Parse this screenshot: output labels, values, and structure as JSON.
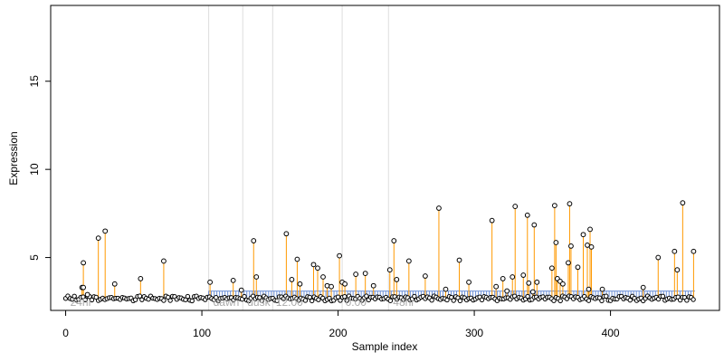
{
  "chart_data": {
    "type": "scatter",
    "title": "",
    "xlabel": "Sample index",
    "ylabel": "Expression",
    "xlim": [
      -11,
      480
    ],
    "ylim": [
      2.0,
      19.3
    ],
    "xticks": [
      0,
      100,
      200,
      300,
      400
    ],
    "yticks": [
      5,
      10,
      15
    ],
    "grid": false,
    "legend": "none",
    "baseline": 2.75,
    "colors": {
      "points": "#000000",
      "stems": "#ff9900",
      "baseline_marks": "#6c8fd6",
      "dividers": "#dddddd",
      "annotations": "#aaaaaa"
    },
    "vertical_lines": [
      105,
      130,
      152,
      203,
      237
    ],
    "blue_band": [
      105,
      462
    ],
    "annotations": [
      {
        "label": "24hr",
        "x": 2
      },
      {
        "label": "dawn",
        "x": 107
      },
      {
        "label": "dusk",
        "x": 132
      },
      {
        "label": "12:00",
        "x": 153
      },
      {
        "label": "0:00",
        "x": 204
      },
      {
        "label": "48hr",
        "x": 239
      }
    ],
    "points": [
      {
        "x": 12,
        "y": 3.3
      },
      {
        "x": 13,
        "y": 3.3
      },
      {
        "x": 13,
        "y": 4.7
      },
      {
        "x": 16,
        "y": 2.9
      },
      {
        "x": 24,
        "y": 6.1
      },
      {
        "x": 29,
        "y": 6.5
      },
      {
        "x": 36,
        "y": 3.5
      },
      {
        "x": 55,
        "y": 3.8
      },
      {
        "x": 72,
        "y": 4.8
      },
      {
        "x": 106,
        "y": 3.6
      },
      {
        "x": 123,
        "y": 3.7
      },
      {
        "x": 129,
        "y": 3.15
      },
      {
        "x": 138,
        "y": 5.95
      },
      {
        "x": 140,
        "y": 3.9
      },
      {
        "x": 162,
        "y": 6.35
      },
      {
        "x": 166,
        "y": 3.75
      },
      {
        "x": 170,
        "y": 4.9
      },
      {
        "x": 172,
        "y": 3.5
      },
      {
        "x": 182,
        "y": 4.6
      },
      {
        "x": 185,
        "y": 4.4
      },
      {
        "x": 189,
        "y": 3.9
      },
      {
        "x": 192,
        "y": 3.4
      },
      {
        "x": 195,
        "y": 3.35
      },
      {
        "x": 201,
        "y": 5.1
      },
      {
        "x": 203,
        "y": 3.6
      },
      {
        "x": 205,
        "y": 3.5
      },
      {
        "x": 213,
        "y": 4.05
      },
      {
        "x": 220,
        "y": 4.1
      },
      {
        "x": 226,
        "y": 3.4
      },
      {
        "x": 238,
        "y": 4.3
      },
      {
        "x": 241,
        "y": 5.95
      },
      {
        "x": 243,
        "y": 3.75
      },
      {
        "x": 252,
        "y": 4.8
      },
      {
        "x": 264,
        "y": 3.95
      },
      {
        "x": 274,
        "y": 7.8
      },
      {
        "x": 279,
        "y": 3.2
      },
      {
        "x": 289,
        "y": 4.85
      },
      {
        "x": 296,
        "y": 3.6
      },
      {
        "x": 313,
        "y": 7.1
      },
      {
        "x": 316,
        "y": 3.35
      },
      {
        "x": 321,
        "y": 3.8
      },
      {
        "x": 324,
        "y": 3.1
      },
      {
        "x": 328,
        "y": 3.9
      },
      {
        "x": 330,
        "y": 7.9
      },
      {
        "x": 336,
        "y": 4.0
      },
      {
        "x": 339,
        "y": 7.4
      },
      {
        "x": 340,
        "y": 3.55
      },
      {
        "x": 343,
        "y": 3.05
      },
      {
        "x": 344,
        "y": 6.85
      },
      {
        "x": 346,
        "y": 3.6
      },
      {
        "x": 357,
        "y": 4.4
      },
      {
        "x": 359,
        "y": 7.95
      },
      {
        "x": 360,
        "y": 5.85
      },
      {
        "x": 361,
        "y": 3.8
      },
      {
        "x": 363,
        "y": 3.65
      },
      {
        "x": 365,
        "y": 3.5
      },
      {
        "x": 369,
        "y": 4.7
      },
      {
        "x": 370,
        "y": 8.05
      },
      {
        "x": 371,
        "y": 5.65
      },
      {
        "x": 376,
        "y": 4.45
      },
      {
        "x": 380,
        "y": 6.3
      },
      {
        "x": 383,
        "y": 5.7
      },
      {
        "x": 384,
        "y": 3.2
      },
      {
        "x": 385,
        "y": 6.6
      },
      {
        "x": 386,
        "y": 5.6
      },
      {
        "x": 394,
        "y": 3.2
      },
      {
        "x": 424,
        "y": 3.3
      },
      {
        "x": 435,
        "y": 5.0
      },
      {
        "x": 447,
        "y": 5.35
      },
      {
        "x": 449,
        "y": 4.3
      },
      {
        "x": 453,
        "y": 8.1
      },
      {
        "x": 461,
        "y": 5.35
      }
    ]
  }
}
